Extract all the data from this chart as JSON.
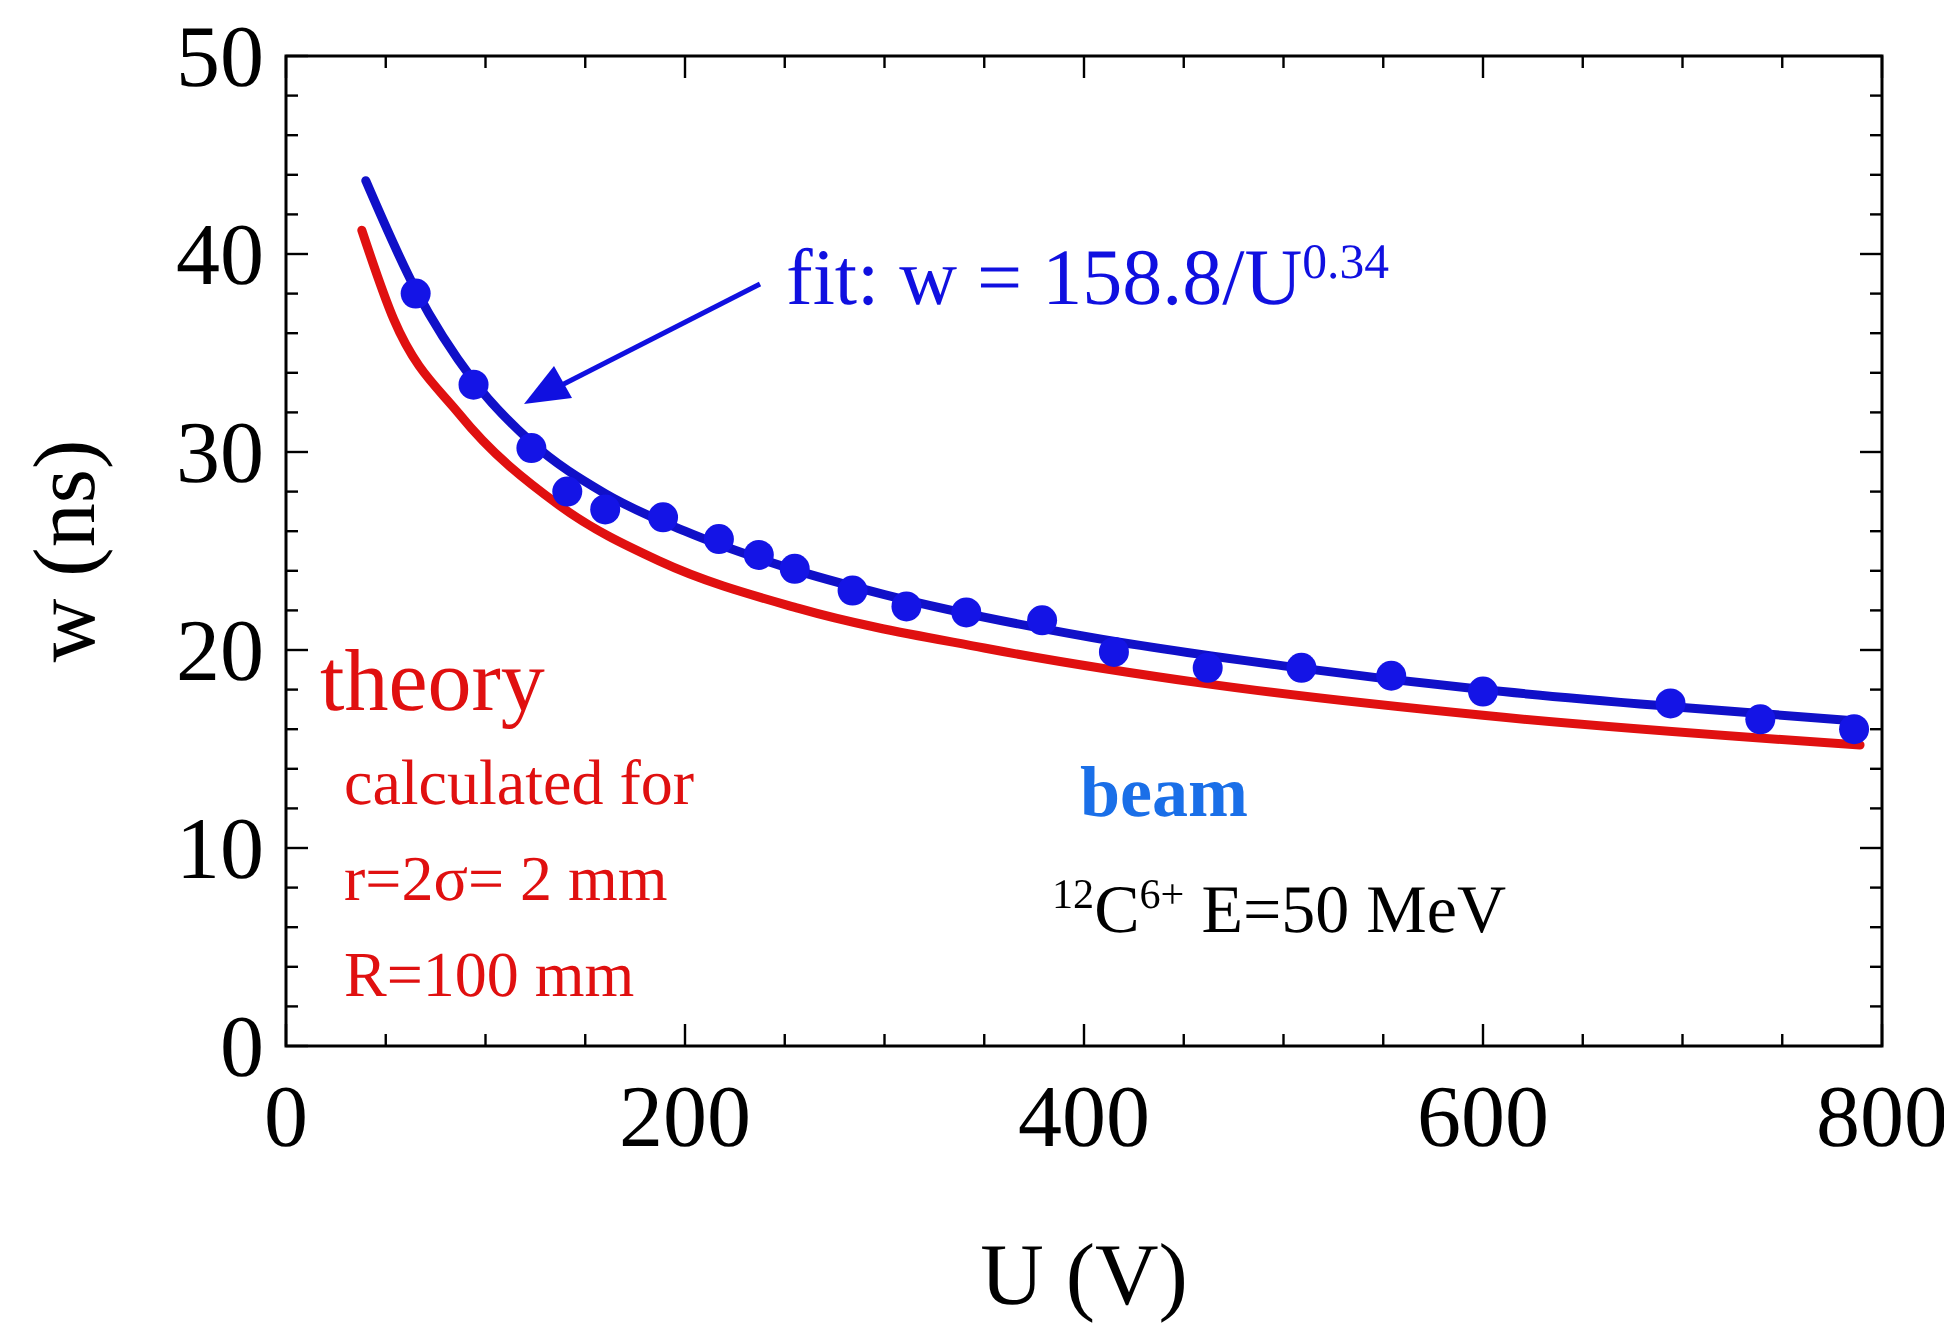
{
  "chart_data": {
    "type": "line",
    "xlabel": "U (V)",
    "ylabel": "w (ns)",
    "xlim": [
      0,
      800
    ],
    "ylim": [
      0,
      50
    ],
    "xticks": [
      0,
      {
        "value": 50,
        "label": null
      },
      200,
      {
        "value": 100,
        "label": null
      },
      {
        "value": 150,
        "label": null
      },
      {
        "value": 250,
        "label": null
      },
      400,
      {
        "value": 300,
        "label": null
      },
      {
        "value": 350,
        "label": null
      },
      {
        "value": 450,
        "label": null
      },
      600,
      {
        "value": 500,
        "label": null
      },
      {
        "value": 550,
        "label": null
      },
      {
        "value": 650,
        "label": null
      },
      800,
      {
        "value": 700,
        "label": null
      },
      {
        "value": 750,
        "label": null
      }
    ],
    "yticks": [
      0,
      10,
      20,
      30,
      40,
      50,
      {
        "value": 2,
        "label": null
      },
      {
        "value": 4,
        "label": null
      },
      {
        "value": 6,
        "label": null
      },
      {
        "value": 8,
        "label": null
      },
      {
        "value": 12,
        "label": null
      },
      {
        "value": 14,
        "label": null
      },
      {
        "value": 16,
        "label": null
      },
      {
        "value": 18,
        "label": null
      },
      {
        "value": 22,
        "label": null
      },
      {
        "value": 24,
        "label": null
      },
      {
        "value": 26,
        "label": null
      },
      {
        "value": 28,
        "label": null
      },
      {
        "value": 32,
        "label": null
      },
      {
        "value": 34,
        "label": null
      },
      {
        "value": 36,
        "label": null
      },
      {
        "value": 38,
        "label": null
      },
      {
        "value": 42,
        "label": null
      },
      {
        "value": 44,
        "label": null
      },
      {
        "value": 46,
        "label": null
      },
      {
        "value": 48,
        "label": null
      }
    ],
    "grid": false,
    "legend": false,
    "series": [
      {
        "name": "theory",
        "color": "#e01010",
        "x": [
          38,
          54,
          87,
          137,
          187,
          257,
          350,
          461,
          600,
          789
        ],
        "values": [
          41.2,
          36.7,
          31.9,
          27.3,
          24.5,
          22.1,
          20.1,
          18.3,
          16.7,
          15.2
        ]
      },
      {
        "color": "#1010c8",
        "x": [
          40,
          65,
          94,
          123,
          160,
          200,
          250,
          300,
          400,
          500,
          600,
          700,
          789
        ],
        "values": [
          43.7,
          38.2,
          33.6,
          30.5,
          27.9,
          26.0,
          24.2,
          22.8,
          20.7,
          19.2,
          18.0,
          17.1,
          16.4
        ]
      },
      {
        "type": "scatter",
        "marker": "circle",
        "color": "#1414e6",
        "x": [
          65,
          94,
          123,
          141,
          160,
          189,
          217,
          237,
          255,
          284,
          311,
          341,
          379,
          415,
          462,
          509,
          554,
          600,
          694,
          739,
          786
        ],
        "values": [
          38.0,
          33.4,
          30.2,
          28.0,
          27.1,
          26.7,
          25.6,
          24.8,
          24.1,
          23.0,
          22.2,
          21.9,
          21.5,
          19.9,
          19.1,
          19.1,
          18.7,
          17.9,
          17.3,
          16.5,
          16.0
        ]
      }
    ],
    "annotations": [
      "fit: w = 158.8/U$^{0.34}$",
      "calculated for",
      "r=2σ= 2 mm",
      "R=100 mm",
      "beam",
      "$^{12}$C$^{6+}$ E=50 MeV"
    ]
  }
}
